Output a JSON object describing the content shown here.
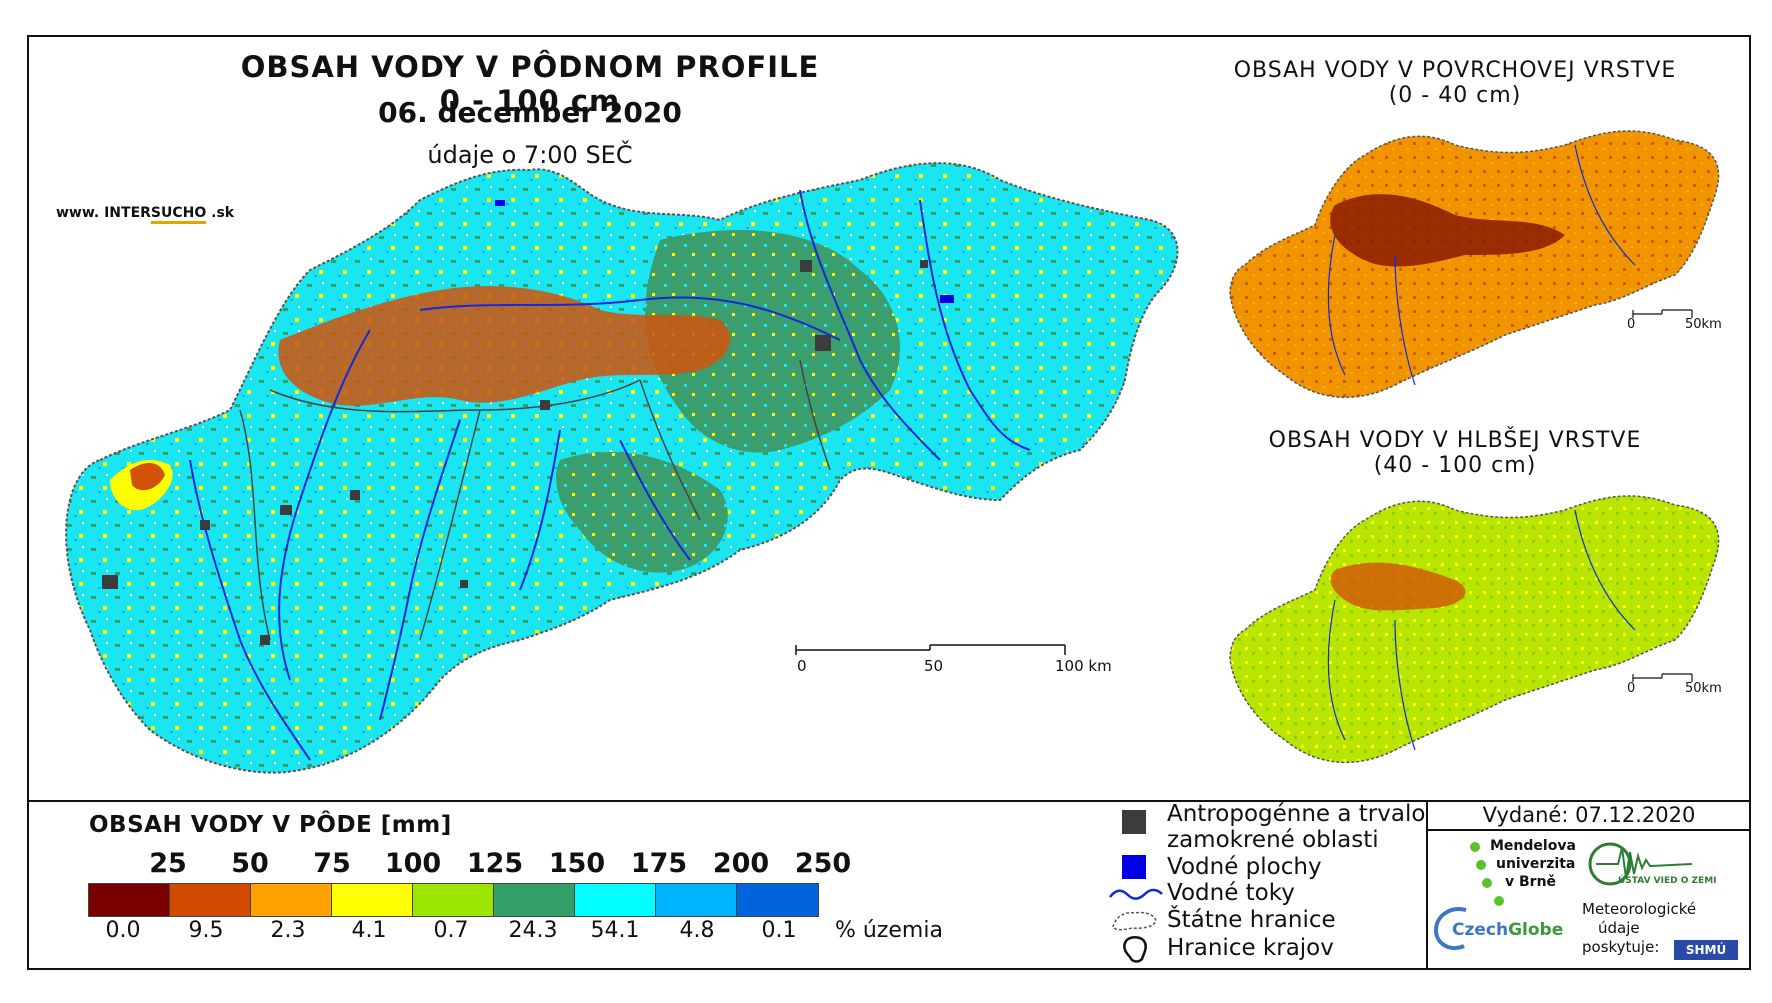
{
  "title": "OBSAH VODY V PÔDNOM PROFILE 0 - 100 cm",
  "date": "06. december 2020",
  "time_note": "údaje o 7:00 SEČ",
  "website": {
    "prefix": "www. INTER",
    "highlight": "SUCHO",
    "suffix": " .sk"
  },
  "inset_top": {
    "title_line1": "OBSAH VODY V POVRCHOVEJ VRSTVE",
    "title_line2": "(0 - 40 cm)"
  },
  "inset_bottom": {
    "title_line1": "OBSAH VODY V HLBŠEJ VRSTVE",
    "title_line2": "(40 - 100 cm)"
  },
  "scale_main": {
    "t0": "0",
    "t1": "50",
    "t2": "100 km"
  },
  "scale_small": {
    "t0": "0",
    "t1": "50km"
  },
  "legend": {
    "title": "OBSAH VODY V PÔDE [mm]",
    "thresholds": [
      "25",
      "50",
      "75",
      "100",
      "125",
      "150",
      "175",
      "200",
      "250"
    ],
    "classes": [
      {
        "color": "#7a0000",
        "percent": "0.0"
      },
      {
        "color": "#d24a00",
        "percent": "9.5"
      },
      {
        "color": "#ffa200",
        "percent": "2.3"
      },
      {
        "color": "#ffff00",
        "percent": "4.1"
      },
      {
        "color": "#9be500",
        "percent": "0.7"
      },
      {
        "color": "#33a06a",
        "percent": "24.3"
      },
      {
        "color": "#00ffff",
        "percent": "54.1"
      },
      {
        "color": "#00b4ff",
        "percent": "4.8"
      },
      {
        "color": "#0064dc",
        "percent": "0.1"
      }
    ],
    "percent_unit": "% územia"
  },
  "overlay_legend": {
    "anthropogenic_l1": "Antropogénne a trvalo",
    "anthropogenic_l2": "zamokrené oblasti",
    "water_bodies": "Vodné plochy",
    "streams": "Vodné toky",
    "state_border": "Štátne hranice",
    "region_border": "Hranice krajov"
  },
  "issued": "Vydané: 07.12.2020",
  "logos": {
    "mendel_l1": "Mendelova",
    "mendel_l2": "univerzita",
    "mendel_l3": "v Brně",
    "czechglobe_a": "Czech",
    "czechglobe_b": "Globe",
    "ustav": "ÚSTAV VIED O ZEMI",
    "meteo_l1": "Meteorologické",
    "meteo_l2": "údaje",
    "meteo_l3": "poskytuje:",
    "shmu": "SHMÚ"
  }
}
